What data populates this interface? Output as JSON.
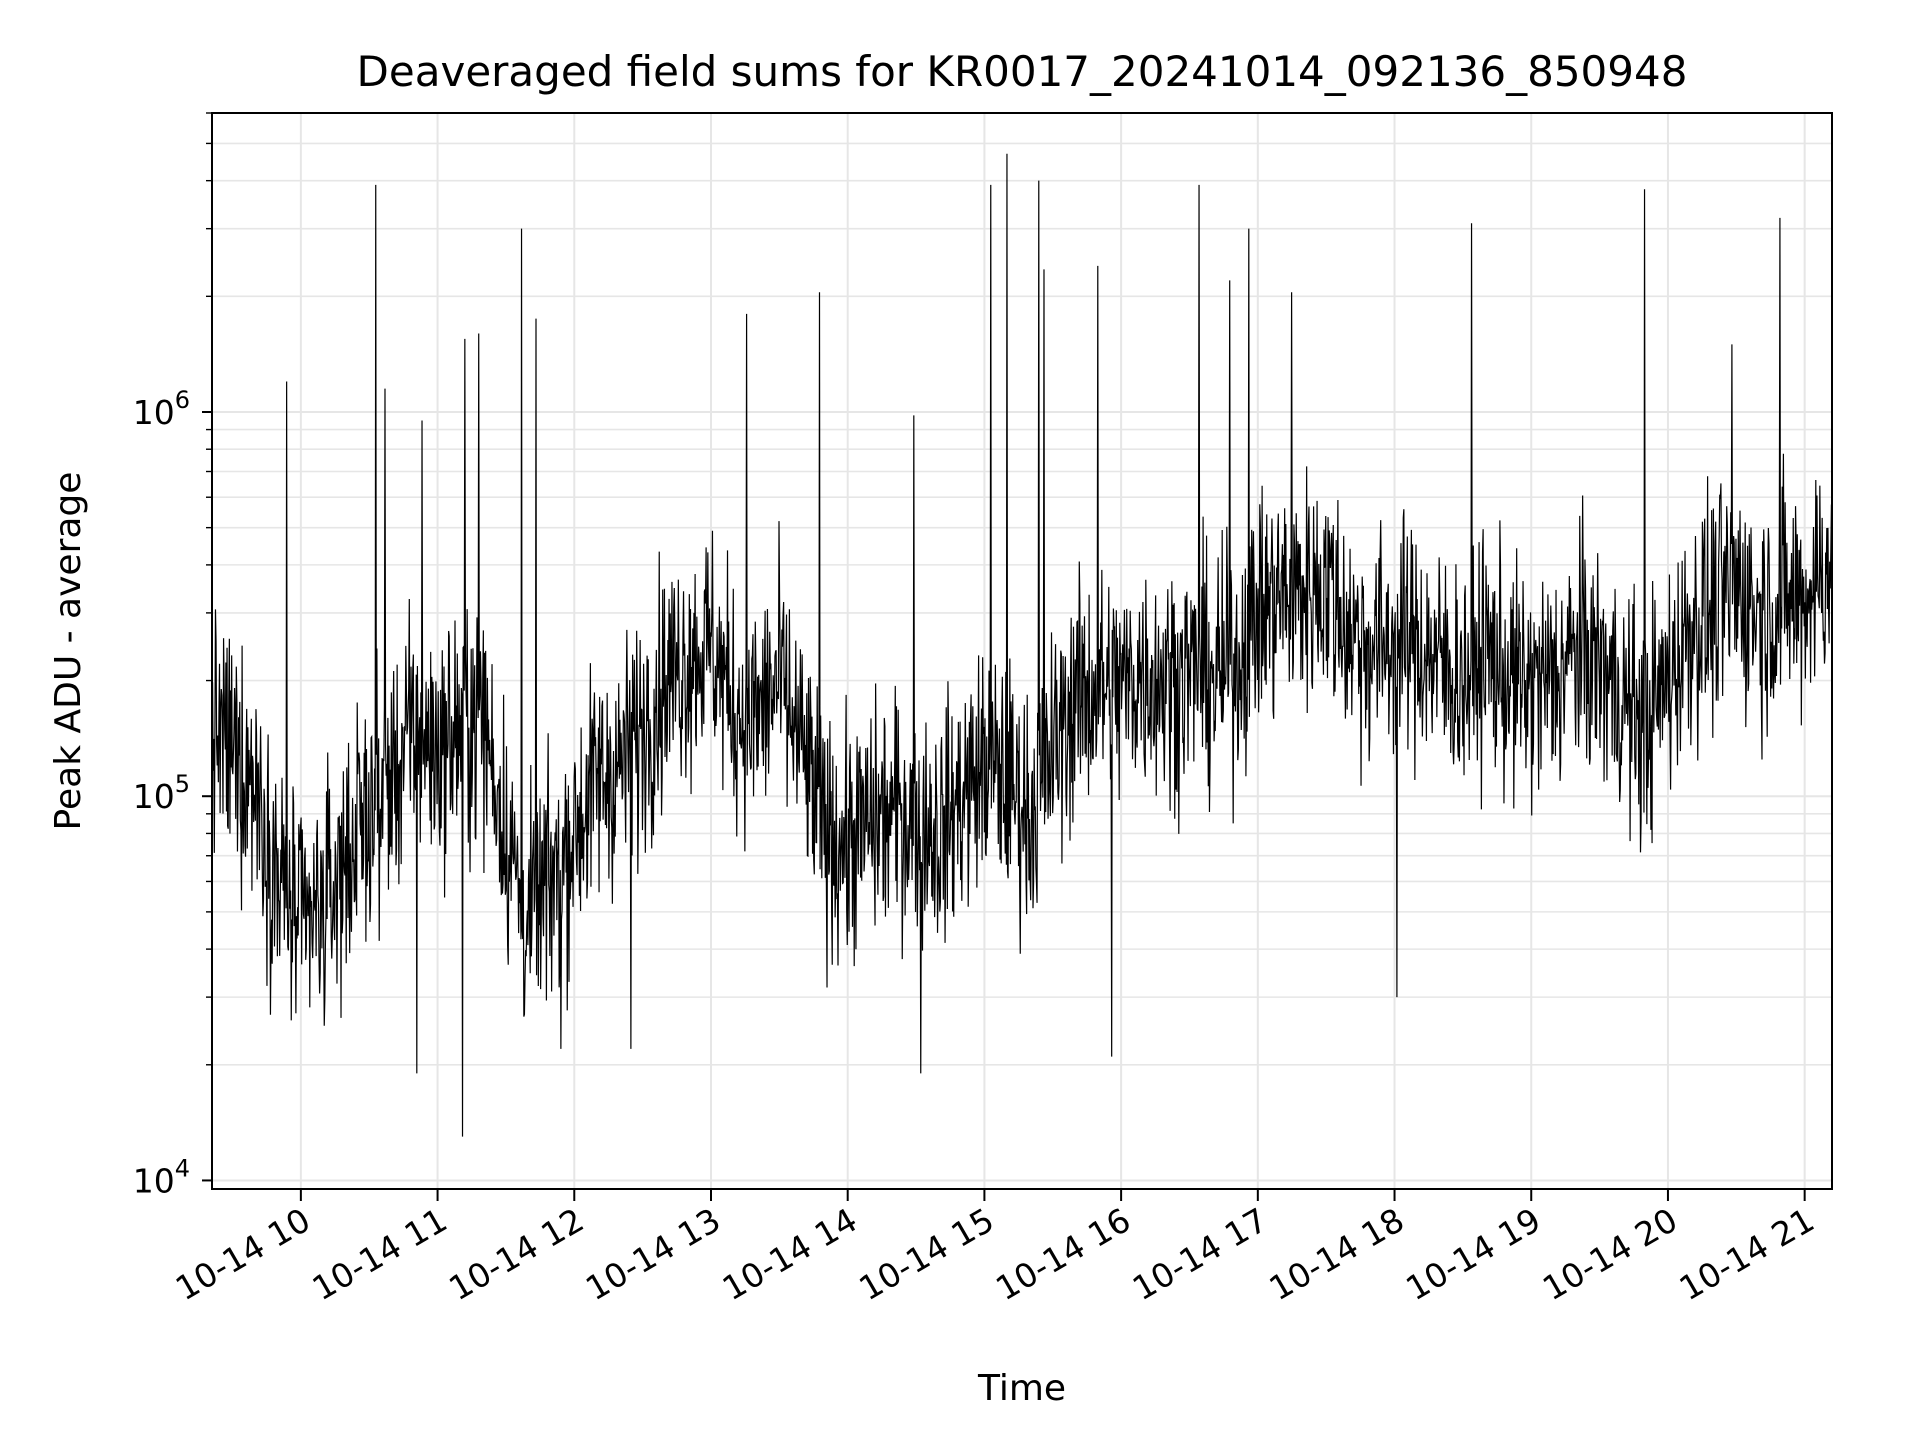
{
  "chart_data": {
    "type": "line",
    "title": "Deaveraged field sums for KR0017_20241014_092136_850948",
    "xlabel": "Time",
    "ylabel": "Peak ADU - average",
    "yscale": "log",
    "xlim": [
      "2024-10-14T09:21",
      "2024-10-14T21:12"
    ],
    "ylim": [
      9500,
      6000000
    ],
    "grid": true,
    "line_color": "#000000",
    "grid_color": "#e6e6e6",
    "x_ticks": [
      {
        "time": "2024-10-14T10:00",
        "label": "10-14 10"
      },
      {
        "time": "2024-10-14T11:00",
        "label": "10-14 11"
      },
      {
        "time": "2024-10-14T12:00",
        "label": "10-14 12"
      },
      {
        "time": "2024-10-14T13:00",
        "label": "10-14 13"
      },
      {
        "time": "2024-10-14T14:00",
        "label": "10-14 14"
      },
      {
        "time": "2024-10-14T15:00",
        "label": "10-14 15"
      },
      {
        "time": "2024-10-14T16:00",
        "label": "10-14 16"
      },
      {
        "time": "2024-10-14T17:00",
        "label": "10-14 17"
      },
      {
        "time": "2024-10-14T18:00",
        "label": "10-14 18"
      },
      {
        "time": "2024-10-14T19:00",
        "label": "10-14 19"
      },
      {
        "time": "2024-10-14T20:00",
        "label": "10-14 20"
      },
      {
        "time": "2024-10-14T21:00",
        "label": "10-14 21"
      }
    ],
    "y_ticks": [
      {
        "value": 10000,
        "base": "10",
        "exp": "4"
      },
      {
        "value": 100000,
        "base": "10",
        "exp": "5"
      },
      {
        "value": 1000000,
        "base": "10",
        "exp": "6"
      }
    ],
    "series": [
      {
        "x": [
          "2024-10-14T09:21",
          "2024-10-14T09:30",
          "2024-10-14T09:40",
          "2024-10-14T09:50",
          "2024-10-14T10:00",
          "2024-10-14T10:10",
          "2024-10-14T10:20",
          "2024-10-14T10:30",
          "2024-10-14T10:40",
          "2024-10-14T10:50",
          "2024-10-14T11:00",
          "2024-10-14T11:10",
          "2024-10-14T11:20",
          "2024-10-14T11:30",
          "2024-10-14T11:40",
          "2024-10-14T11:50",
          "2024-10-14T12:00",
          "2024-10-14T12:10",
          "2024-10-14T12:20",
          "2024-10-14T12:30",
          "2024-10-14T12:40",
          "2024-10-14T12:50",
          "2024-10-14T13:00",
          "2024-10-14T13:10",
          "2024-10-14T13:20",
          "2024-10-14T13:30",
          "2024-10-14T13:40",
          "2024-10-14T13:50",
          "2024-10-14T14:00",
          "2024-10-14T14:10",
          "2024-10-14T14:20",
          "2024-10-14T14:30",
          "2024-10-14T14:40",
          "2024-10-14T14:50",
          "2024-10-14T15:00",
          "2024-10-14T15:10",
          "2024-10-14T15:20",
          "2024-10-14T15:30",
          "2024-10-14T15:40",
          "2024-10-14T15:50",
          "2024-10-14T16:00",
          "2024-10-14T16:10",
          "2024-10-14T16:20",
          "2024-10-14T16:30",
          "2024-10-14T16:40",
          "2024-10-14T16:50",
          "2024-10-14T17:00",
          "2024-10-14T17:10",
          "2024-10-14T17:20",
          "2024-10-14T17:30",
          "2024-10-14T17:40",
          "2024-10-14T17:50",
          "2024-10-14T18:00",
          "2024-10-14T18:10",
          "2024-10-14T18:20",
          "2024-10-14T18:30",
          "2024-10-14T18:40",
          "2024-10-14T18:50",
          "2024-10-14T19:00",
          "2024-10-14T19:10",
          "2024-10-14T19:20",
          "2024-10-14T19:30",
          "2024-10-14T19:40",
          "2024-10-14T19:50",
          "2024-10-14T20:00",
          "2024-10-14T20:10",
          "2024-10-14T20:20",
          "2024-10-14T20:30",
          "2024-10-14T20:40",
          "2024-10-14T20:50",
          "2024-10-14T21:00",
          "2024-10-14T21:12"
        ],
        "baseline": [
          150000,
          130000,
          110000,
          60000,
          45000,
          50000,
          70000,
          90000,
          110000,
          150000,
          130000,
          150000,
          160000,
          80000,
          45000,
          60000,
          80000,
          110000,
          120000,
          150000,
          200000,
          230000,
          250000,
          170000,
          160000,
          200000,
          130000,
          80000,
          75000,
          85000,
          90000,
          90000,
          80000,
          100000,
          120000,
          110000,
          90000,
          130000,
          180000,
          190000,
          190000,
          210000,
          200000,
          210000,
          200000,
          220000,
          300000,
          330000,
          340000,
          360000,
          270000,
          240000,
          260000,
          250000,
          220000,
          200000,
          240000,
          200000,
          190000,
          200000,
          240000,
          220000,
          180000,
          150000,
          200000,
          280000,
          300000,
          350000,
          300000,
          320000,
          330000,
          420000
        ],
        "peaks": [
          {
            "time": "2024-10-14T09:54",
            "value": 1200000
          },
          {
            "time": "2024-10-14T10:33",
            "value": 3900000
          },
          {
            "time": "2024-10-14T10:37",
            "value": 1150000
          },
          {
            "time": "2024-10-14T10:53",
            "value": 950000
          },
          {
            "time": "2024-10-14T11:12",
            "value": 1550000
          },
          {
            "time": "2024-10-14T11:18",
            "value": 1600000
          },
          {
            "time": "2024-10-14T11:37",
            "value": 3000000
          },
          {
            "time": "2024-10-14T11:43",
            "value": 1750000
          },
          {
            "time": "2024-10-14T13:16",
            "value": 1800000
          },
          {
            "time": "2024-10-14T13:48",
            "value": 2050000
          },
          {
            "time": "2024-10-14T14:29",
            "value": 980000
          },
          {
            "time": "2024-10-14T15:03",
            "value": 3900000
          },
          {
            "time": "2024-10-14T15:10",
            "value": 4700000
          },
          {
            "time": "2024-10-14T15:24",
            "value": 4000000
          },
          {
            "time": "2024-10-14T15:26",
            "value": 2350000
          },
          {
            "time": "2024-10-14T15:50",
            "value": 2400000
          },
          {
            "time": "2024-10-14T16:34",
            "value": 3900000
          },
          {
            "time": "2024-10-14T16:48",
            "value": 2200000
          },
          {
            "time": "2024-10-14T16:56",
            "value": 3000000
          },
          {
            "time": "2024-10-14T17:15",
            "value": 2050000
          },
          {
            "time": "2024-10-14T18:34",
            "value": 3100000
          },
          {
            "time": "2024-10-14T19:50",
            "value": 3800000
          },
          {
            "time": "2024-10-14T20:28",
            "value": 1500000
          },
          {
            "time": "2024-10-14T20:49",
            "value": 3200000
          }
        ],
        "dips": [
          {
            "time": "2024-10-14T10:51",
            "value": 19000
          },
          {
            "time": "2024-10-14T11:11",
            "value": 13000
          },
          {
            "time": "2024-10-14T11:54",
            "value": 22000
          },
          {
            "time": "2024-10-14T12:25",
            "value": 22000
          },
          {
            "time": "2024-10-14T14:32",
            "value": 19000
          },
          {
            "time": "2024-10-14T15:56",
            "value": 21000
          },
          {
            "time": "2024-10-14T18:01",
            "value": 30000
          }
        ]
      }
    ]
  }
}
